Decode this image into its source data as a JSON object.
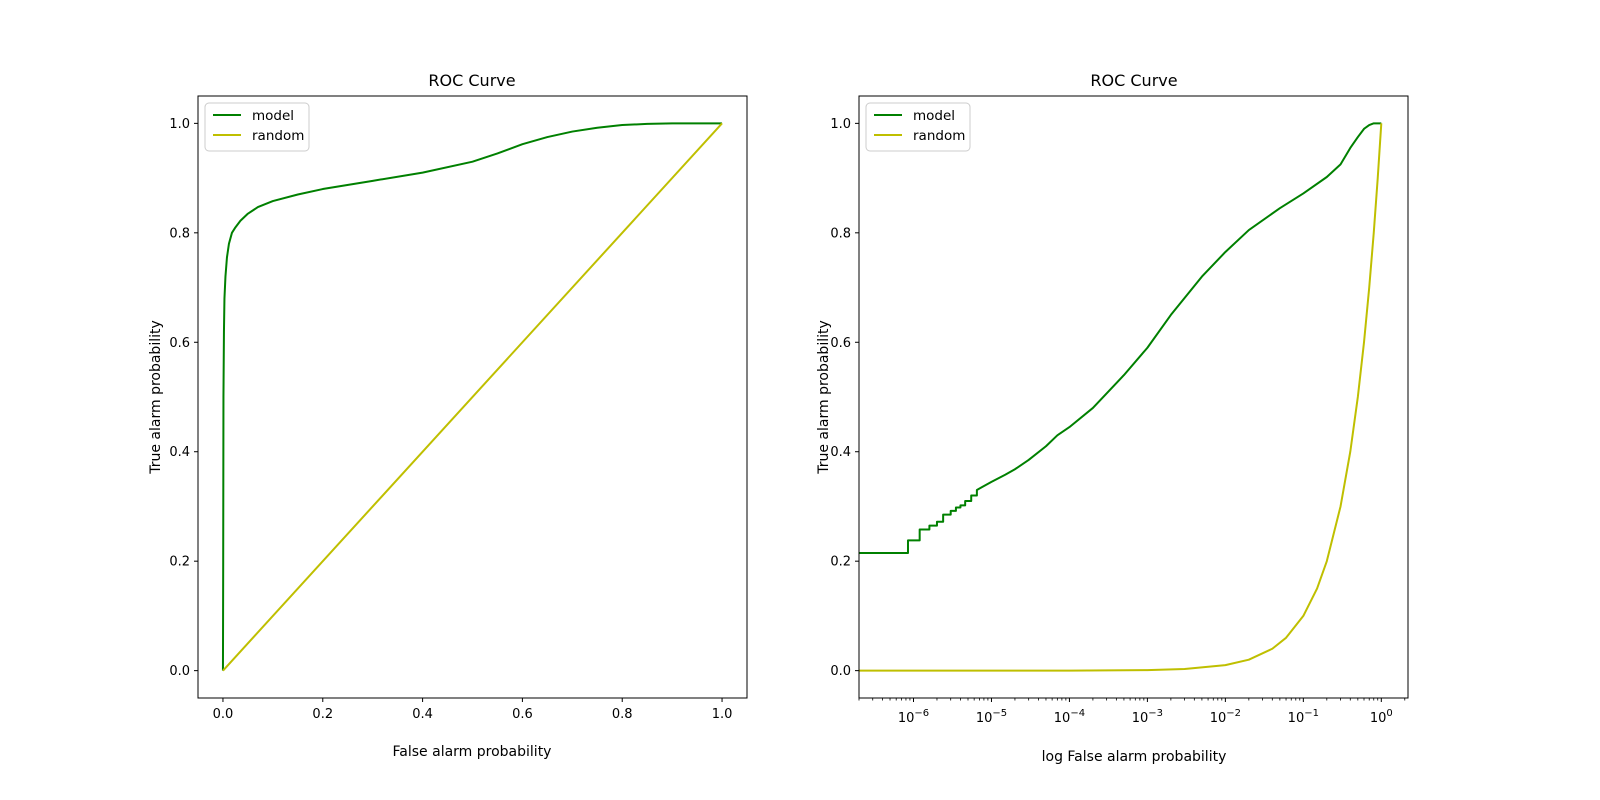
{
  "chart_data": [
    {
      "type": "line",
      "title": "ROC Curve",
      "xlabel": "False alarm probability",
      "ylabel": "True alarm probability",
      "xscale": "linear",
      "xlim": [
        -0.05,
        1.05
      ],
      "ylim": [
        -0.05,
        1.05
      ],
      "xticks": [
        0.0,
        0.2,
        0.4,
        0.6,
        0.8,
        1.0
      ],
      "xtick_labels": [
        "0.0",
        "0.2",
        "0.4",
        "0.6",
        "0.8",
        "1.0"
      ],
      "yticks": [
        0.0,
        0.2,
        0.4,
        0.6,
        0.8,
        1.0
      ],
      "ytick_labels": [
        "0.0",
        "0.2",
        "0.4",
        "0.6",
        "0.8",
        "1.0"
      ],
      "legend": "upper-left",
      "grid": false,
      "series": [
        {
          "name": "model",
          "color": "#008000",
          "x": [
            0,
            0.0005,
            0.001,
            0.002,
            0.003,
            0.005,
            0.008,
            0.012,
            0.018,
            0.025,
            0.035,
            0.05,
            0.07,
            0.1,
            0.15,
            0.2,
            0.3,
            0.4,
            0.5,
            0.55,
            0.6,
            0.65,
            0.7,
            0.75,
            0.8,
            0.85,
            0.9,
            0.95,
            1.0
          ],
          "y": [
            0,
            0.2,
            0.5,
            0.62,
            0.68,
            0.72,
            0.755,
            0.78,
            0.8,
            0.81,
            0.822,
            0.835,
            0.847,
            0.858,
            0.87,
            0.88,
            0.895,
            0.91,
            0.93,
            0.945,
            0.962,
            0.975,
            0.985,
            0.992,
            0.997,
            0.999,
            1.0,
            1.0,
            1.0
          ]
        },
        {
          "name": "random",
          "color": "#bfbf00",
          "x": [
            0,
            1.0
          ],
          "y": [
            0,
            1.0
          ]
        }
      ]
    },
    {
      "type": "line",
      "title": "ROC Curve",
      "xlabel": "log False alarm probability",
      "ylabel": "True alarm probability",
      "xscale": "log",
      "xlim": [
        2e-07,
        2.2
      ],
      "ylim": [
        -0.05,
        1.05
      ],
      "xticks": [
        1e-06,
        1e-05,
        0.0001,
        0.001,
        0.01,
        0.1,
        1
      ],
      "xtick_labels": [
        {
          "base": "10",
          "exp": "−6"
        },
        {
          "base": "10",
          "exp": "−5"
        },
        {
          "base": "10",
          "exp": "−4"
        },
        {
          "base": "10",
          "exp": "−3"
        },
        {
          "base": "10",
          "exp": "−2"
        },
        {
          "base": "10",
          "exp": "−1"
        },
        {
          "base": "10",
          "exp": "0"
        }
      ],
      "yticks": [
        0.0,
        0.2,
        0.4,
        0.6,
        0.8,
        1.0
      ],
      "ytick_labels": [
        "0.0",
        "0.2",
        "0.4",
        "0.6",
        "0.8",
        "1.0"
      ],
      "legend": "upper-left",
      "grid": false,
      "series": [
        {
          "name": "model",
          "color": "#008000",
          "x": [
            2e-07,
            8.5e-07,
            8.5e-07,
            1.2e-06,
            1.2e-06,
            1.6e-06,
            1.6e-06,
            2e-06,
            2e-06,
            2.4e-06,
            2.4e-06,
            3e-06,
            3e-06,
            3.5e-06,
            3.5e-06,
            4e-06,
            4e-06,
            4.6e-06,
            4.6e-06,
            5.5e-06,
            5.5e-06,
            6.5e-06,
            6.5e-06,
            7.5e-06,
            1e-05,
            1.5e-05,
            2e-05,
            3e-05,
            5e-05,
            7e-05,
            0.0001,
            0.0002,
            0.0005,
            0.001,
            0.002,
            0.005,
            0.01,
            0.02,
            0.05,
            0.1,
            0.2,
            0.3,
            0.4,
            0.5,
            0.6,
            0.7,
            0.8,
            0.9,
            1.0
          ],
          "y": [
            0.215,
            0.215,
            0.238,
            0.238,
            0.258,
            0.258,
            0.265,
            0.265,
            0.272,
            0.272,
            0.285,
            0.285,
            0.292,
            0.292,
            0.298,
            0.298,
            0.302,
            0.302,
            0.31,
            0.31,
            0.32,
            0.32,
            0.33,
            0.335,
            0.345,
            0.358,
            0.368,
            0.385,
            0.41,
            0.43,
            0.445,
            0.48,
            0.54,
            0.59,
            0.65,
            0.72,
            0.765,
            0.805,
            0.845,
            0.872,
            0.902,
            0.925,
            0.955,
            0.975,
            0.99,
            0.997,
            1.0,
            1.0,
            1.0
          ]
        },
        {
          "name": "random",
          "color": "#bfbf00",
          "x": [
            2e-07,
            1e-05,
            0.0001,
            0.001,
            0.003,
            0.01,
            0.02,
            0.04,
            0.06,
            0.1,
            0.15,
            0.2,
            0.3,
            0.4,
            0.5,
            0.6,
            0.7,
            0.8,
            0.9,
            1.0
          ],
          "y": [
            0,
            0,
            0,
            0.001,
            0.003,
            0.01,
            0.02,
            0.04,
            0.06,
            0.1,
            0.15,
            0.2,
            0.3,
            0.4,
            0.5,
            0.6,
            0.7,
            0.8,
            0.9,
            1.0
          ]
        }
      ]
    }
  ]
}
